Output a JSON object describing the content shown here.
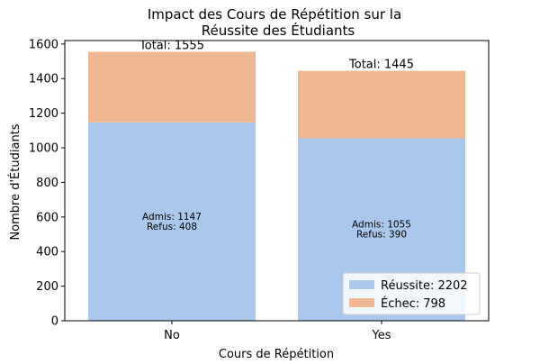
{
  "chart_data": {
    "type": "bar",
    "stacked": true,
    "title_line1": "Impact des Cours de Répétition sur la",
    "title_line2": "Réussite des Étudiants",
    "xlabel": "Cours de Répétition",
    "ylabel": "Nombre d'Étudiants",
    "categories": [
      "No",
      "Yes"
    ],
    "ylim": [
      0,
      1620
    ],
    "yticks": [
      0,
      200,
      400,
      600,
      800,
      1000,
      1200,
      1400,
      1600
    ],
    "series": [
      {
        "name": "Réussite: 2202",
        "values": [
          1147,
          1055
        ],
        "color": "#aac8ec"
      },
      {
        "name": "Échec: 798",
        "values": [
          408,
          390
        ],
        "color": "#f0b892"
      }
    ],
    "total_labels": [
      "Total: 1555",
      "Total: 1445"
    ],
    "inner_labels": [
      [
        "Admis: 1147",
        "Refus: 408"
      ],
      [
        "Admis: 1055",
        "Refus: 390"
      ]
    ],
    "legend_position": "lower-right",
    "grid": false
  }
}
